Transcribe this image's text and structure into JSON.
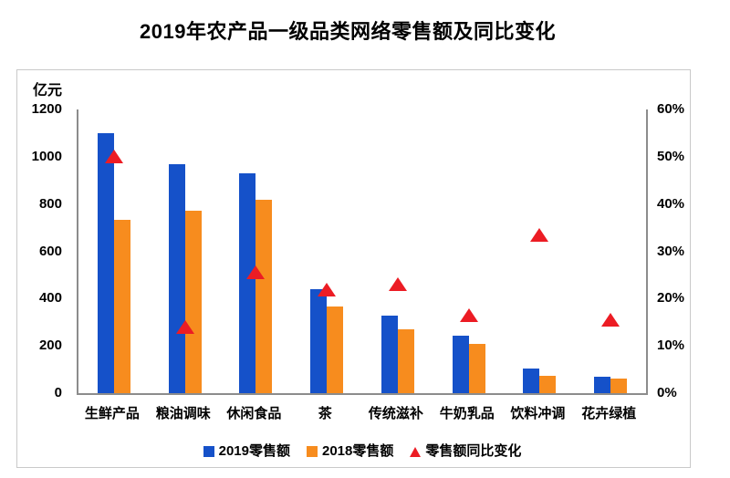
{
  "page": {
    "title": "2019年农产品一级品类网络零售额及同比变化"
  },
  "colors": {
    "bar_2019": "#1551C9",
    "bar_2018": "#F78C1E",
    "yoy_marker": "#EC1C24",
    "axis_line": "#8c8c8c",
    "frame_border": "#c9c9c9",
    "text": "#000000"
  },
  "chart_data": {
    "type": "bar",
    "subtype": "grouped-bars-with-triangle-markers",
    "title": "2019年农产品一级品类网络零售额及同比变化",
    "categories": [
      "生鲜产品",
      "粮油调味",
      "休闲食品",
      "茶",
      "传统滋补",
      "牛奶乳品",
      "饮料冲调",
      "花卉绿植"
    ],
    "series": [
      {
        "name": "2019零售额",
        "kind": "bar",
        "axis": "left",
        "color": "#1551C9",
        "values": [
          1100,
          970,
          930,
          440,
          330,
          245,
          105,
          70
        ]
      },
      {
        "name": "2018零售额",
        "kind": "bar",
        "axis": "left",
        "color": "#F78C1E",
        "values": [
          735,
          770,
          820,
          365,
          270,
          210,
          75,
          60
        ]
      },
      {
        "name": "零售额同比变化",
        "kind": "triangle-marker",
        "axis": "right",
        "color": "#EC1C24",
        "values": [
          50,
          14,
          25.5,
          22,
          23,
          16.5,
          33.5,
          15.5
        ]
      }
    ],
    "left_axis": {
      "unit": "亿元",
      "min": 0,
      "max": 1200,
      "ticks": [
        "1200",
        "1000",
        "800",
        "600",
        "400",
        "200",
        "0"
      ]
    },
    "right_axis": {
      "min": 0,
      "max": 60,
      "ticks": [
        "60%",
        "50%",
        "40%",
        "30%",
        "20%",
        "10%",
        "0%"
      ]
    },
    "legend_position": "bottom",
    "grid": false
  }
}
